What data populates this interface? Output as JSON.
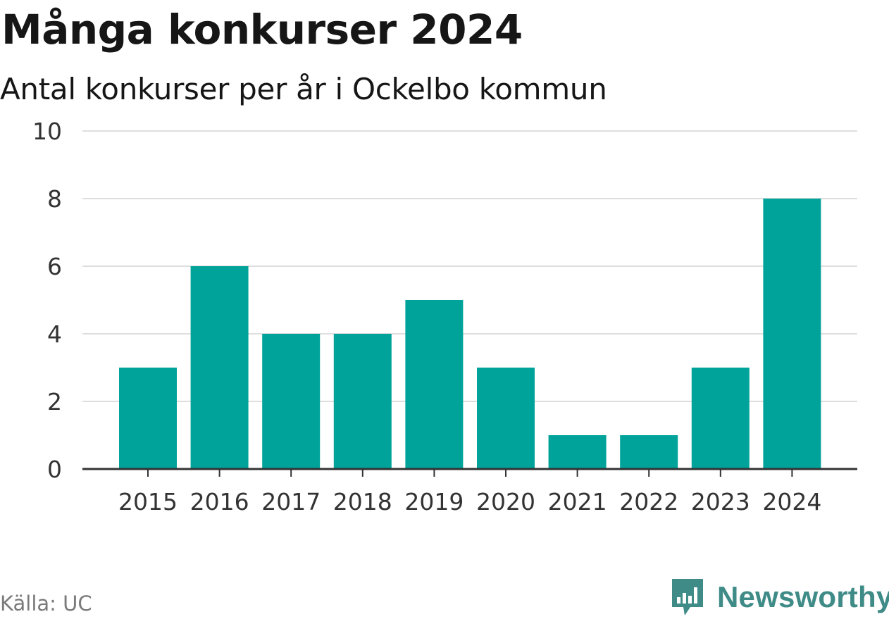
{
  "header": {
    "title": "Många konkurser 2024",
    "subtitle": "Antal konkurser per år i Ockelbo kommun"
  },
  "footer": {
    "source": "Källa: UC",
    "brand": "Newsworthy",
    "brand_icon": "newsworthy-logo-icon"
  },
  "colors": {
    "bar": "#00a39a",
    "grid": "#dedede",
    "axis": "#333333",
    "tick_text": "#333333",
    "brand": "#3f8b87"
  },
  "chart_data": {
    "type": "bar",
    "categories": [
      "2015",
      "2016",
      "2017",
      "2018",
      "2019",
      "2020",
      "2021",
      "2022",
      "2023",
      "2024"
    ],
    "values": [
      3,
      6,
      4,
      4,
      5,
      3,
      1,
      1,
      3,
      8
    ],
    "ylim": [
      0,
      10
    ],
    "yticks": [
      0,
      2,
      4,
      6,
      8,
      10
    ],
    "title": "Många konkurser 2024",
    "subtitle": "Antal konkurser per år i Ockelbo kommun",
    "xlabel": "",
    "ylabel": "",
    "grid": true,
    "legend": "none"
  }
}
